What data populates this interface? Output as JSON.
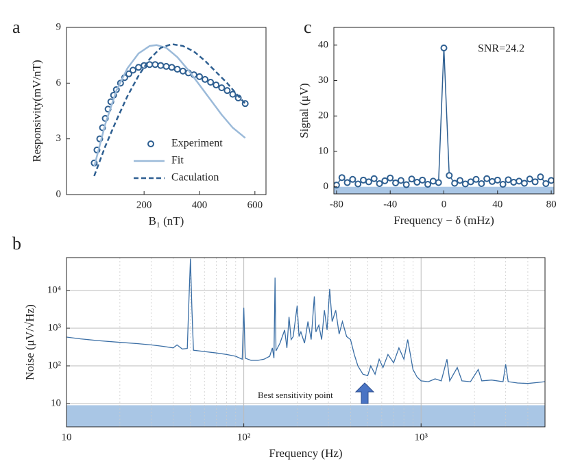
{
  "chart_data": [
    {
      "type": "line",
      "panel_label": "a",
      "x_label": "B₁ (nT)",
      "y_label": "Responsivity(mV/nT)",
      "xlim": [
        -80,
        640
      ],
      "ylim": [
        0,
        9
      ],
      "xticks": [
        200,
        400,
        600
      ],
      "yticks": [
        0,
        3,
        6,
        9
      ],
      "legend": "lower right",
      "series": [
        {
          "name": "Experiment",
          "color": "#2e5f91",
          "style": "markers",
          "x": [
            20,
            30,
            40,
            50,
            60,
            70,
            80,
            90,
            100,
            115,
            130,
            145,
            160,
            180,
            200,
            220,
            240,
            260,
            280,
            300,
            320,
            340,
            360,
            380,
            400,
            420,
            440,
            460,
            480,
            500,
            520,
            540,
            565
          ],
          "values": [
            1.7,
            2.4,
            3.0,
            3.6,
            4.1,
            4.6,
            5.0,
            5.35,
            5.65,
            6.0,
            6.3,
            6.5,
            6.7,
            6.85,
            6.95,
            7.0,
            7.0,
            6.95,
            6.9,
            6.85,
            6.75,
            6.65,
            6.55,
            6.45,
            6.35,
            6.2,
            6.05,
            5.9,
            5.75,
            5.6,
            5.4,
            5.2,
            4.9
          ]
        },
        {
          "name": "Fit",
          "color": "#9bbad9",
          "style": "solid",
          "x": [
            20,
            60,
            100,
            140,
            180,
            220,
            245,
            280,
            320,
            360,
            400,
            440,
            480,
            520,
            565
          ],
          "values": [
            1.5,
            3.8,
            5.6,
            6.8,
            7.6,
            8.0,
            8.05,
            7.9,
            7.4,
            6.7,
            5.9,
            5.1,
            4.3,
            3.6,
            3.05
          ]
        },
        {
          "name": "Caculation",
          "color": "#2e5f91",
          "style": "dashed",
          "x": [
            20,
            60,
            100,
            140,
            180,
            220,
            260,
            300,
            340,
            380,
            420,
            460,
            500,
            540,
            565
          ],
          "values": [
            1.0,
            2.6,
            4.0,
            5.3,
            6.4,
            7.3,
            7.9,
            8.1,
            8.0,
            7.7,
            7.2,
            6.6,
            6.0,
            5.3,
            4.9
          ]
        }
      ]
    },
    {
      "type": "line",
      "panel_label": "c",
      "x_label": "Frequency − δ (mHz)",
      "y_label": "Signal (μV)",
      "xlim": [
        -82,
        82
      ],
      "ylim": [
        -2,
        45
      ],
      "xticks": [
        -80,
        -40,
        0,
        40,
        80
      ],
      "yticks": [
        0,
        10,
        20,
        30,
        40
      ],
      "band": [
        -2,
        0
      ],
      "band_color": "#a9c6e5",
      "annotations": [
        "SNR=24.2"
      ],
      "series": [
        {
          "color": "#2e5f91",
          "style": "line-markers",
          "x": [
            -80,
            -76,
            -72,
            -68,
            -64,
            -60,
            -56,
            -52,
            -48,
            -44,
            -40,
            -36,
            -32,
            -28,
            -24,
            -20,
            -16,
            -12,
            -8,
            -4,
            0,
            4,
            8,
            12,
            16,
            20,
            24,
            28,
            32,
            36,
            40,
            44,
            48,
            52,
            56,
            60,
            64,
            68,
            72,
            76,
            80
          ],
          "values": [
            0.5,
            2.6,
            1.2,
            2.1,
            0.8,
            1.9,
            1.4,
            2.3,
            0.9,
            1.7,
            2.5,
            1.1,
            1.8,
            0.6,
            2.2,
            1.3,
            1.9,
            0.7,
            1.6,
            1.2,
            39.2,
            3.2,
            1.0,
            1.8,
            0.8,
            1.4,
            2.1,
            0.9,
            2.3,
            1.5,
            1.9,
            0.7,
            2.0,
            1.3,
            1.6,
            1.0,
            2.2,
            1.4,
            2.8,
            0.9,
            1.8
          ]
        }
      ]
    },
    {
      "type": "line",
      "panel_label": "b",
      "x_label": "Frequency (Hz)",
      "y_label": "Noise (μV/√Hz)",
      "xscale": "log",
      "yscale": "log",
      "grid": true,
      "xminor_grid": true,
      "xlim": [
        10,
        5000
      ],
      "ylim": [
        2.4,
        75000
      ],
      "xticks": [
        10,
        {
          "value": 100,
          "label": "10²"
        },
        {
          "value": 1000,
          "label": "10³"
        }
      ],
      "yticks": [
        10,
        {
          "value": 100,
          "label": "10²"
        },
        {
          "value": 1000,
          "label": "10³"
        },
        {
          "value": 10000,
          "label": "10⁴"
        }
      ],
      "band": [
        2.4,
        9
      ],
      "band_color": "#a9c6e5",
      "annotations": [
        "Best sensitivity point"
      ],
      "series": [
        {
          "color": "#3a6ea5",
          "style": "solid",
          "x": [
            10,
            12,
            15,
            20,
            25,
            30,
            35,
            40,
            42,
            45,
            48,
            49,
            50,
            51,
            52,
            60,
            70,
            80,
            90,
            98,
            100,
            102,
            110,
            120,
            130,
            140,
            145,
            148,
            150,
            152,
            160,
            170,
            175,
            180,
            185,
            190,
            200,
            205,
            210,
            220,
            230,
            240,
            250,
            255,
            265,
            275,
            285,
            295,
            305,
            315,
            330,
            345,
            360,
            380,
            400,
            420,
            440,
            470,
            500,
            520,
            550,
            580,
            610,
            650,
            700,
            750,
            800,
            840,
            870,
            900,
            950,
            1000,
            1100,
            1200,
            1300,
            1400,
            1450,
            1600,
            1700,
            1900,
            2100,
            2200,
            2500,
            2900,
            3000,
            3100,
            3500,
            4000,
            4500,
            5000
          ],
          "values": [
            580,
            520,
            470,
            420,
            390,
            360,
            330,
            300,
            360,
            280,
            290,
            5000,
            70000,
            3000,
            260,
            240,
            220,
            200,
            180,
            150,
            3500,
            160,
            140,
            140,
            150,
            180,
            300,
            160,
            22000,
            250,
            400,
            900,
            300,
            2000,
            500,
            600,
            4000,
            600,
            800,
            400,
            1500,
            500,
            7000,
            800,
            1200,
            500,
            3000,
            900,
            11000,
            1500,
            3000,
            700,
            1500,
            600,
            500,
            200,
            100,
            60,
            55,
            100,
            60,
            150,
            90,
            200,
            120,
            300,
            150,
            500,
            200,
            80,
            50,
            40,
            38,
            45,
            40,
            150,
            40,
            90,
            40,
            38,
            80,
            40,
            42,
            38,
            110,
            38,
            35,
            34,
            36,
            38
          ]
        }
      ]
    }
  ]
}
